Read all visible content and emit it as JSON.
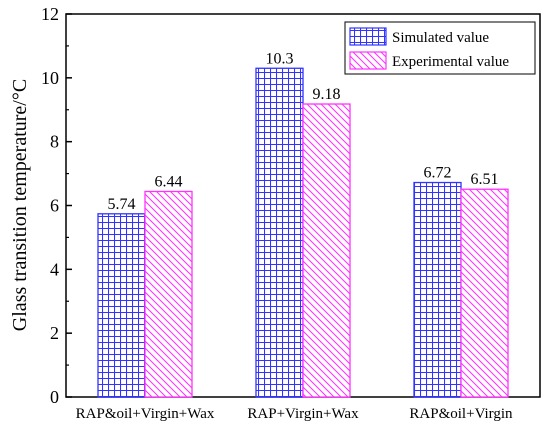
{
  "chart_data": {
    "type": "bar",
    "ylabel": "Glass transition temperature/°C",
    "xlabel": "",
    "categories": [
      "RAP&oil+Virgin+Wax",
      "RAP+Virgin+Wax",
      "RAP&oil+Virgin"
    ],
    "series": [
      {
        "name": "Simulated value",
        "values": [
          5.74,
          10.3,
          6.72
        ],
        "value_labels": [
          "5.74",
          "10.3",
          "6.72"
        ],
        "color": "#3333ff",
        "pattern": "grid"
      },
      {
        "name": "Experimental value",
        "values": [
          6.44,
          9.18,
          6.51
        ],
        "value_labels": [
          "6.44",
          "9.18",
          "6.51"
        ],
        "color": "#ff33ff",
        "pattern": "diagonal-hatch"
      }
    ],
    "ylim": [
      0,
      12
    ],
    "yticks": [
      0,
      2,
      4,
      6,
      8,
      10,
      12
    ],
    "grid": false,
    "legend_position": "top-right"
  }
}
